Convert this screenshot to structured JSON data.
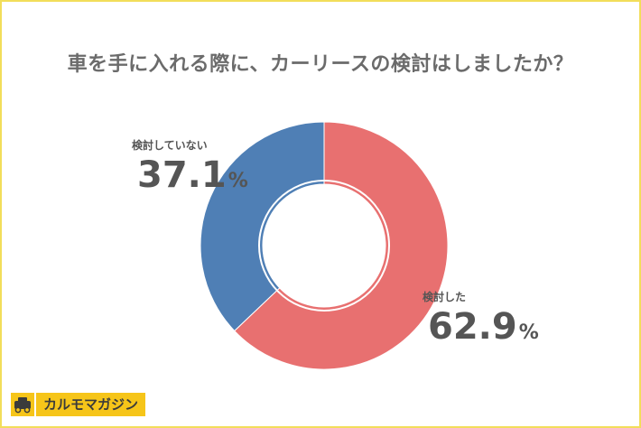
{
  "title": "車を手に入れる際に、カーリースの検討はしましたか？",
  "chart_data": {
    "type": "pie",
    "title": "車を手に入れる際に、カーリースの検討はしましたか？",
    "donut": true,
    "slices": [
      {
        "name": "検討した",
        "value": 62.9,
        "value_label": "62.9",
        "unit": "%",
        "color": "#e87070"
      },
      {
        "name": "検討していない",
        "value": 37.1,
        "value_label": "37.1",
        "unit": "%",
        "color": "#4f7fb5"
      }
    ]
  },
  "logo": {
    "text": "カルモマガジン",
    "accent_color": "#f6c519"
  }
}
